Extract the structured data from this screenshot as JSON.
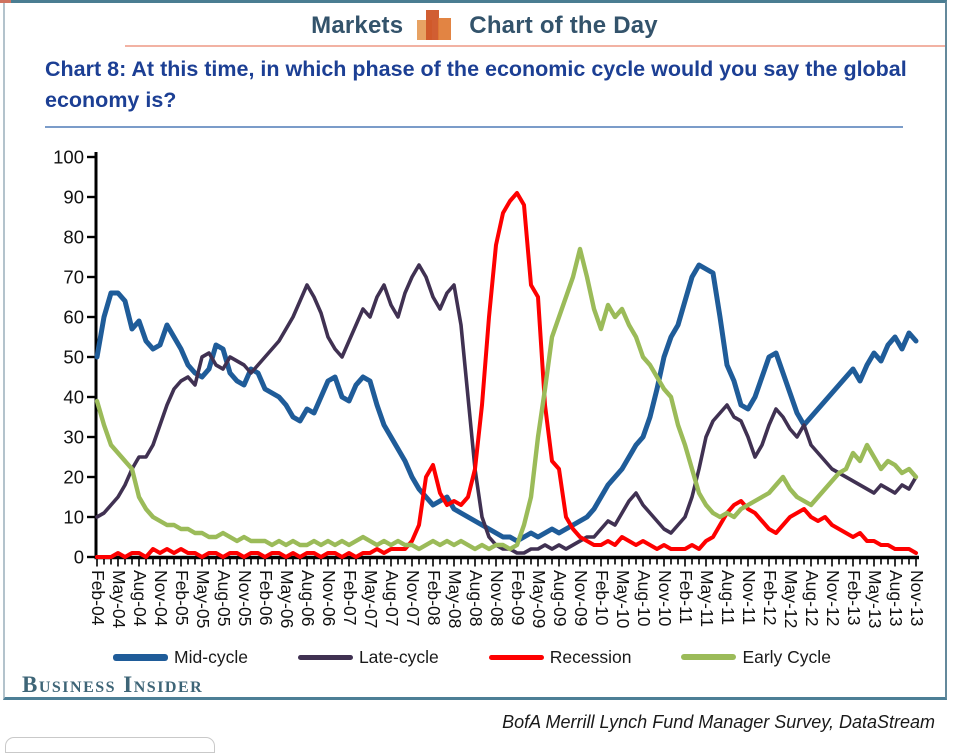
{
  "header": {
    "markets_label": "Markets",
    "chart_of_day_label": "Chart of the Day"
  },
  "title_text": "Chart 8: At this time, in which phase of the economic cycle would you say the global economy is?",
  "brand": "Business Insider",
  "source": "BofA Merrill Lynch Fund Manager Survey, DataStream",
  "colors": {
    "frame_teal": "#4a7d92",
    "header_text": "#33536b",
    "title_navy": "#1c3f94",
    "underline_blue": "#7b9cc9",
    "salmon_line": "#f2b2a3",
    "mid_cycle": "#1F5C99",
    "late_cycle": "#403152",
    "recession": "#FE0000",
    "early_cycle": "#9BBB59"
  },
  "chart_data": {
    "type": "line",
    "title": "At this time, in which phase of the economic cycle would you say the global economy is?",
    "ylim": [
      0,
      100
    ],
    "y_ticks": [
      0,
      10,
      20,
      30,
      40,
      50,
      60,
      70,
      80,
      90,
      100
    ],
    "grid": false,
    "legend_position": "bottom",
    "months_per_label": 3,
    "x_labels": [
      "Feb-04",
      "May-04",
      "Aug-04",
      "Nov-04",
      "Feb-05",
      "May-05",
      "Aug-05",
      "Nov-05",
      "Feb-06",
      "May-06",
      "Aug-06",
      "Nov-06",
      "Feb-07",
      "May-07",
      "Aug-07",
      "Nov-07",
      "Feb-08",
      "May-08",
      "Aug-08",
      "Nov-08",
      "Feb-09",
      "May-09",
      "Aug-09",
      "Nov-09",
      "Feb-10",
      "May-10",
      "Aug-10",
      "Nov-10",
      "Feb-11",
      "May-11",
      "Aug-11",
      "Nov-11",
      "Feb-12",
      "May-12",
      "Aug-12",
      "Nov-12",
      "Feb-13",
      "May-13",
      "Aug-13",
      "Nov-13"
    ],
    "series": [
      {
        "name": "Mid-cycle",
        "color": "#1F5C99",
        "values": [
          50,
          60,
          66,
          66,
          64,
          57,
          59,
          54,
          52,
          53,
          58,
          55,
          52,
          48,
          46,
          45,
          47,
          53,
          52,
          46,
          44,
          43,
          47,
          46,
          42,
          41,
          40,
          38,
          35,
          34,
          37,
          36,
          40,
          44,
          45,
          40,
          39,
          43,
          45,
          44,
          38,
          33,
          30,
          27,
          24,
          20,
          17,
          15,
          13,
          14,
          15,
          12,
          11,
          10,
          9,
          8,
          7,
          6,
          5,
          5,
          4,
          5,
          6,
          5,
          6,
          7,
          6,
          7,
          8,
          9,
          10,
          12,
          15,
          18,
          20,
          22,
          25,
          28,
          30,
          35,
          42,
          50,
          55,
          58,
          64,
          70,
          73,
          72,
          71,
          60,
          48,
          44,
          38,
          37,
          40,
          45,
          50,
          51,
          46,
          41,
          36,
          33,
          35,
          37,
          39,
          41,
          43,
          45,
          47,
          44,
          48,
          51,
          49,
          53,
          55,
          52,
          56,
          54
        ]
      },
      {
        "name": "Late-cycle",
        "color": "#403152",
        "values": [
          10,
          11,
          13,
          15,
          18,
          22,
          25,
          25,
          28,
          33,
          38,
          42,
          44,
          45,
          43,
          50,
          51,
          48,
          47,
          50,
          49,
          48,
          46,
          48,
          50,
          52,
          54,
          57,
          60,
          64,
          68,
          65,
          61,
          55,
          52,
          50,
          54,
          58,
          62,
          60,
          65,
          68,
          63,
          60,
          66,
          70,
          73,
          70,
          65,
          62,
          66,
          68,
          58,
          40,
          22,
          10,
          5,
          3,
          2,
          2,
          1,
          1,
          2,
          2,
          3,
          2,
          3,
          2,
          3,
          4,
          5,
          5,
          7,
          9,
          8,
          11,
          14,
          16,
          13,
          11,
          9,
          7,
          6,
          8,
          10,
          15,
          22,
          30,
          34,
          36,
          38,
          35,
          34,
          30,
          25,
          28,
          33,
          37,
          35,
          32,
          30,
          33,
          28,
          26,
          24,
          22,
          21,
          20,
          19,
          18,
          17,
          16,
          18,
          17,
          16,
          18,
          17,
          20
        ]
      },
      {
        "name": "Recession",
        "color": "#FE0000",
        "values": [
          0,
          0,
          0,
          1,
          0,
          1,
          1,
          0,
          2,
          1,
          2,
          1,
          2,
          1,
          1,
          0,
          1,
          1,
          0,
          1,
          1,
          0,
          1,
          1,
          0,
          1,
          1,
          0,
          1,
          0,
          1,
          1,
          0,
          1,
          1,
          0,
          1,
          0,
          1,
          1,
          2,
          1,
          2,
          2,
          2,
          4,
          8,
          20,
          23,
          16,
          13,
          14,
          13,
          15,
          22,
          38,
          60,
          78,
          86,
          89,
          91,
          88,
          68,
          65,
          38,
          24,
          22,
          10,
          7,
          5,
          4,
          3,
          3,
          4,
          3,
          5,
          4,
          3,
          4,
          3,
          2,
          3,
          2,
          2,
          2,
          3,
          2,
          4,
          5,
          8,
          11,
          13,
          14,
          12,
          11,
          9,
          7,
          6,
          8,
          10,
          11,
          12,
          10,
          9,
          10,
          8,
          7,
          6,
          5,
          6,
          4,
          4,
          3,
          3,
          2,
          2,
          2,
          1
        ]
      },
      {
        "name": "Early Cycle",
        "color": "#9BBB59",
        "values": [
          39,
          33,
          28,
          26,
          24,
          22,
          15,
          12,
          10,
          9,
          8,
          8,
          7,
          7,
          6,
          6,
          5,
          5,
          6,
          5,
          4,
          5,
          4,
          4,
          4,
          3,
          4,
          3,
          4,
          3,
          3,
          4,
          3,
          4,
          3,
          4,
          3,
          4,
          5,
          4,
          3,
          4,
          3,
          4,
          3,
          3,
          2,
          3,
          4,
          3,
          4,
          3,
          4,
          3,
          2,
          3,
          2,
          3,
          3,
          2,
          3,
          8,
          15,
          30,
          42,
          55,
          60,
          65,
          70,
          77,
          70,
          62,
          57,
          63,
          60,
          62,
          58,
          55,
          50,
          48,
          45,
          42,
          40,
          33,
          28,
          22,
          16,
          13,
          11,
          10,
          11,
          10,
          12,
          13,
          14,
          15,
          16,
          18,
          20,
          17,
          15,
          14,
          13,
          15,
          17,
          19,
          21,
          22,
          26,
          24,
          28,
          25,
          22,
          24,
          23,
          21,
          22,
          20
        ]
      }
    ]
  }
}
